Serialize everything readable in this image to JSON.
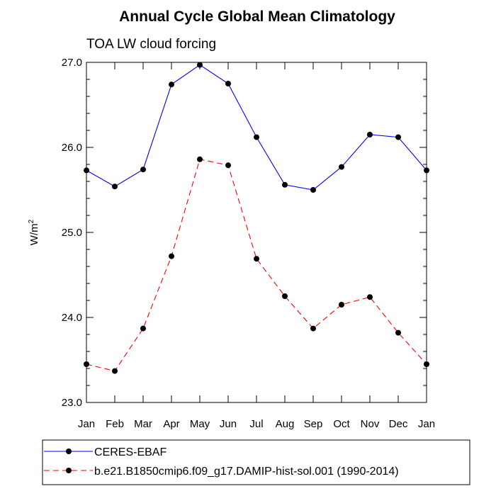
{
  "chart_data": {
    "type": "line",
    "title": "Annual Cycle Global Mean Climatology",
    "subtitle": "TOA LW cloud forcing",
    "ylabel": "W/m",
    "ylabel_sup": "2",
    "xlabel": "",
    "categories": [
      "Jan",
      "Feb",
      "Mar",
      "Apr",
      "May",
      "Jun",
      "Jul",
      "Aug",
      "Sep",
      "Oct",
      "Nov",
      "Dec",
      "Jan"
    ],
    "ylim": [
      23.0,
      27.0
    ],
    "yticks": [
      "23.0",
      "24.0",
      "25.0",
      "26.0",
      "27.0"
    ],
    "grid": false,
    "legend_position": "bottom",
    "series": [
      {
        "name": "CERES-EBAF",
        "color": "#0000ff",
        "dash": "solid",
        "marker": "filled-circle",
        "values": [
          25.73,
          25.54,
          25.74,
          26.74,
          26.97,
          26.75,
          26.12,
          25.56,
          25.5,
          25.77,
          26.15,
          26.12,
          25.73
        ]
      },
      {
        "name": "b.e21.B1850cmip6.f09_g17.DAMIP-hist-sol.001 (1990-2014)",
        "color": "#ff0000",
        "dash": "dashed",
        "marker": "filled-circle",
        "values": [
          23.45,
          23.37,
          23.87,
          24.72,
          25.86,
          25.79,
          24.69,
          24.25,
          23.87,
          24.15,
          24.24,
          23.82,
          23.45
        ]
      }
    ]
  }
}
